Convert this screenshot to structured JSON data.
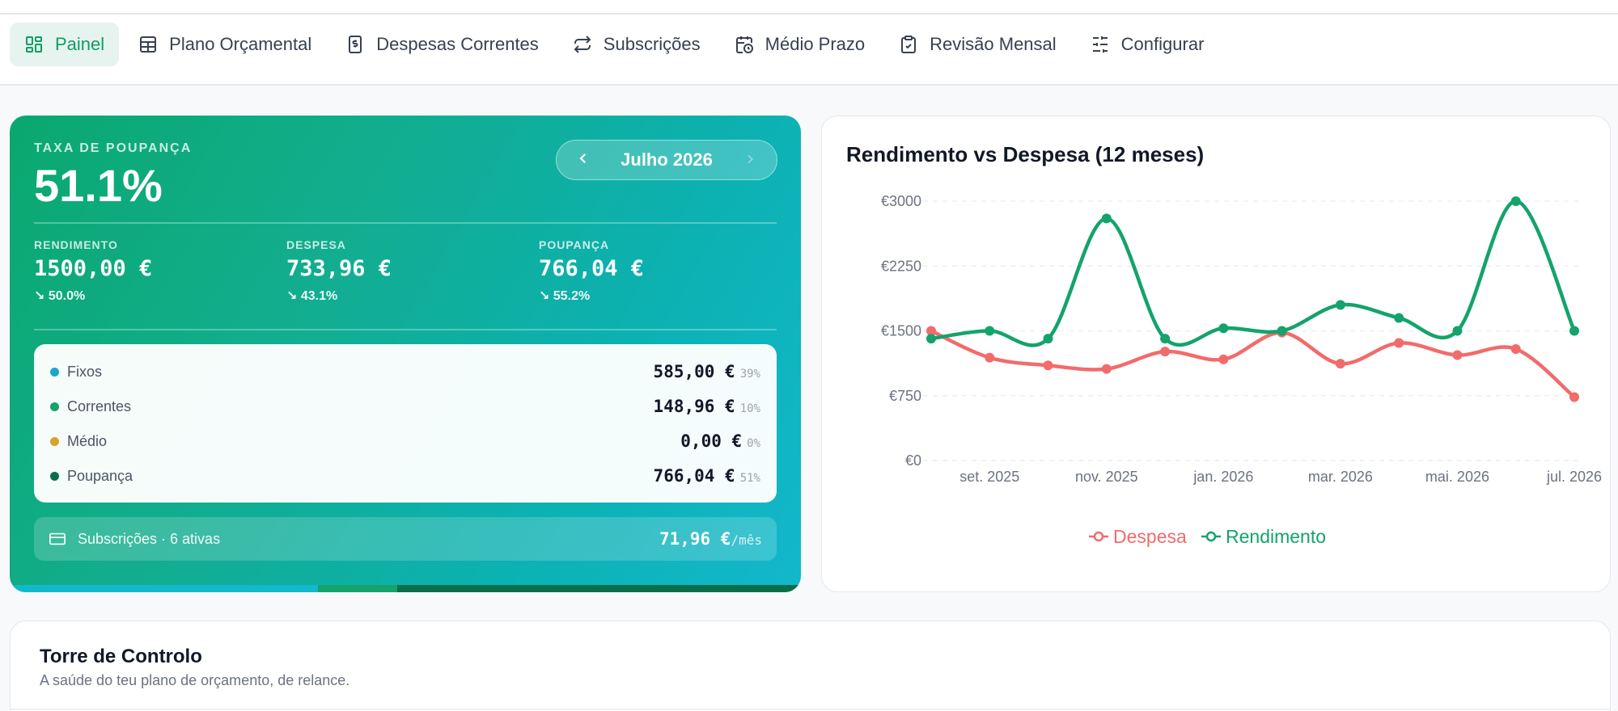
{
  "nav": {
    "tabs": [
      {
        "label": "Painel",
        "icon": "dashboard-icon",
        "active": true
      },
      {
        "label": "Plano Orçamental",
        "icon": "table-icon",
        "active": false
      },
      {
        "label": "Despesas Correntes",
        "icon": "receipt-dollar-icon",
        "active": false
      },
      {
        "label": "Subscrições",
        "icon": "repeat-arrows-icon",
        "active": false
      },
      {
        "label": "Médio Prazo",
        "icon": "calendar-clock-icon",
        "active": false
      },
      {
        "label": "Revisão Mensal",
        "icon": "clipboard-check-icon",
        "active": false
      },
      {
        "label": "Configurar",
        "icon": "sliders-icon",
        "active": false
      }
    ]
  },
  "hero": {
    "rate_label": "TAXA DE POUPANÇA",
    "rate_value": "51.1%",
    "month": "Julho 2026",
    "kpis": [
      {
        "label": "RENDIMENTO",
        "value": "1500,00 €",
        "delta": "↘ 50.0%"
      },
      {
        "label": "DESPESA",
        "value": "733,96 €",
        "delta": "↘ 43.1%"
      },
      {
        "label": "POUPANÇA",
        "value": "766,04 €",
        "delta": "↘ 55.2%"
      }
    ],
    "breakdown": [
      {
        "label": "Fixos",
        "amount": "585,00 €",
        "pct": "39%",
        "color": "#1aa7c9"
      },
      {
        "label": "Correntes",
        "amount": "148,96 €",
        "pct": "10%",
        "color": "#14a36b"
      },
      {
        "label": "Médio",
        "amount": "0,00 €",
        "pct": "0%",
        "color": "#d4a52a"
      },
      {
        "label": "Poupança",
        "amount": "766,04 €",
        "pct": "51%",
        "color": "#0b6e4a"
      }
    ],
    "subscriptions": {
      "label": "Subscrições · 6 ativas",
      "amount": "71,96 €",
      "period": "/mês"
    },
    "allocation": [
      {
        "fraction": 0.39,
        "color": "#12b8cc"
      },
      {
        "fraction": 0.1,
        "color": "#14a36b"
      },
      {
        "fraction": 0.51,
        "color": "#0b6e4a"
      }
    ]
  },
  "chart": {
    "title": "Rendimento vs Despesa (12 meses)"
  },
  "chart_data": {
    "type": "line",
    "x": [
      "ago. 2025",
      "set. 2025",
      "out. 2025",
      "nov. 2025",
      "dez. 2025",
      "jan. 2026",
      "fev. 2026",
      "mar. 2026",
      "abr. 2026",
      "mai. 2026",
      "jun. 2026",
      "jul. 2026"
    ],
    "x_tick_labels": [
      "set. 2025",
      "nov. 2025",
      "jan. 2026",
      "mar. 2026",
      "mai. 2026",
      "jul. 2026"
    ],
    "y_tick_labels": [
      "€0",
      "€750",
      "€1500",
      "€2250",
      "€3000"
    ],
    "ylim": [
      0,
      3000
    ],
    "grid": true,
    "legend": "bottom",
    "series": [
      {
        "name": "Despesa",
        "color": "#f26b6b",
        "values": [
          1500,
          1190,
          1100,
          1060,
          1260,
          1170,
          1480,
          1120,
          1360,
          1220,
          1290,
          734
        ]
      },
      {
        "name": "Rendimento",
        "color": "#14a36b",
        "values": [
          1410,
          1500,
          1410,
          2800,
          1410,
          1530,
          1500,
          1800,
          1650,
          1500,
          3000,
          1500
        ]
      }
    ]
  },
  "tower": {
    "title": "Torre de Controlo",
    "subtitle": "A saúde do teu plano de orçamento, de relance."
  }
}
